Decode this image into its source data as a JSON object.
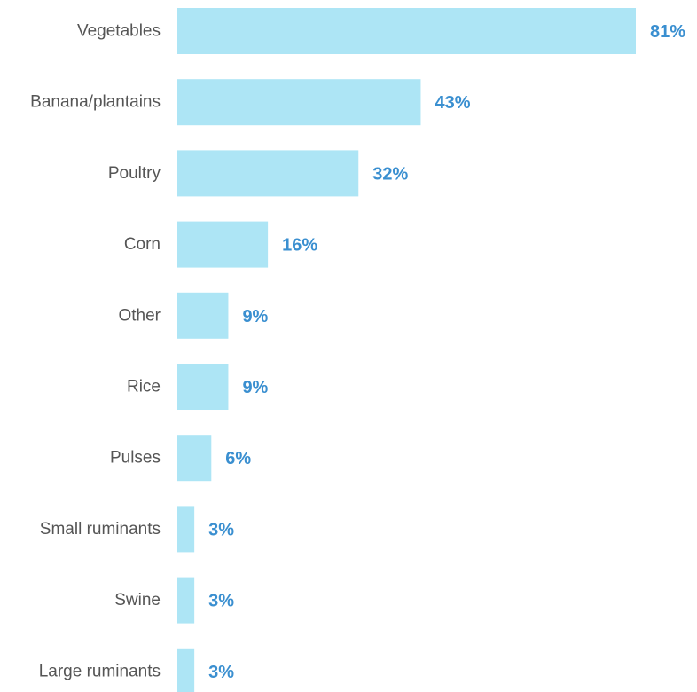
{
  "chart_data": {
    "type": "bar",
    "orientation": "horizontal",
    "categories": [
      "Vegetables",
      "Banana/plantains",
      "Poultry",
      "Corn",
      "Other",
      "Rice",
      "Pulses",
      "Small ruminants",
      "Swine",
      "Large ruminants"
    ],
    "values": [
      81,
      43,
      32,
      16,
      9,
      9,
      6,
      3,
      3,
      3
    ],
    "value_labels": [
      "81%",
      "43%",
      "32%",
      "16%",
      "9%",
      "9%",
      "6%",
      "3%",
      "3%",
      "3%"
    ],
    "unit": "%",
    "xlim": [
      0,
      81
    ],
    "grid": false,
    "legend": "none",
    "colors": {
      "bar": "#ADE5F5",
      "value_label": "#3A8FD0",
      "category_label": "#555555"
    }
  }
}
